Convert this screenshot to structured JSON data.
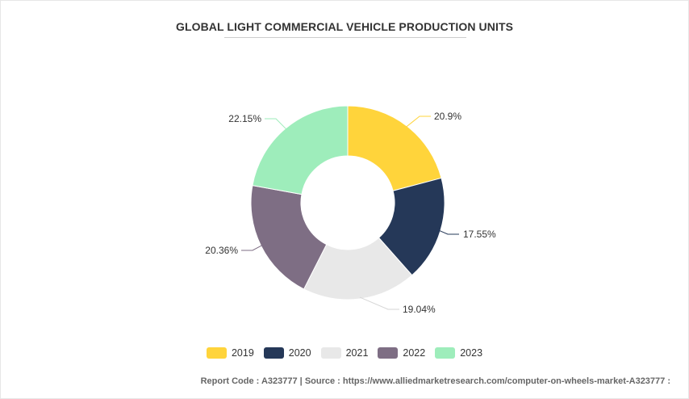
{
  "title": "GLOBAL LIGHT COMMERCIAL VEHICLE PRODUCTION UNITS",
  "footer": "Report Code : A323777  |  Source : https://www.alliedmarketresearch.com/computer-on-wheels-market-A323777 :",
  "chart_data": {
    "type": "pie",
    "donut": true,
    "categories": [
      "2019",
      "2020",
      "2021",
      "2022",
      "2023"
    ],
    "values": [
      20.9,
      17.55,
      19.04,
      20.36,
      22.15
    ],
    "labels": [
      "20.9%",
      "17.55%",
      "19.04%",
      "20.36%",
      "22.15%"
    ],
    "colors": [
      "#FFD43B",
      "#253858",
      "#E8E8E8",
      "#7E6E84",
      "#9EEDBB"
    ],
    "legend_position": "bottom"
  }
}
